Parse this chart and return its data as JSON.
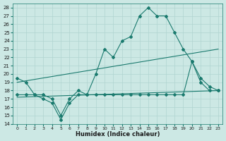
{
  "xlabel": "Humidex (Indice chaleur)",
  "xlim": [
    -0.5,
    23.5
  ],
  "ylim": [
    14,
    28.5
  ],
  "yticks": [
    14,
    15,
    16,
    17,
    18,
    19,
    20,
    21,
    22,
    23,
    24,
    25,
    26,
    27,
    28
  ],
  "xticks": [
    0,
    1,
    2,
    3,
    4,
    5,
    6,
    7,
    8,
    9,
    10,
    11,
    12,
    13,
    14,
    15,
    16,
    17,
    18,
    19,
    20,
    21,
    22,
    23
  ],
  "bg_color": "#cce8e4",
  "line_color": "#1a7a6e",
  "grid_color": "#b0d4d0",
  "line1_x": [
    0,
    1,
    2,
    3,
    4,
    5,
    6,
    7,
    8,
    9,
    10,
    11,
    12,
    13,
    14,
    15,
    16,
    17,
    18,
    19,
    20,
    21,
    22,
    23
  ],
  "line1_y": [
    19.5,
    19.0,
    17.5,
    17.5,
    17.0,
    15.0,
    17.0,
    18.0,
    17.5,
    20.0,
    23.0,
    22.0,
    24.0,
    24.5,
    27.0,
    28.0,
    27.0,
    27.0,
    25.0,
    23.0,
    21.5,
    19.5,
    18.5,
    18.0
  ],
  "line2_x": [
    0,
    1,
    2,
    3,
    4,
    5,
    6,
    7,
    8,
    9,
    10,
    11,
    12,
    13,
    14,
    15,
    16,
    17,
    18,
    19,
    20,
    21,
    22,
    23
  ],
  "line2_y": [
    17.5,
    17.5,
    17.5,
    17.0,
    16.5,
    14.5,
    16.5,
    17.5,
    17.5,
    17.5,
    17.5,
    17.5,
    17.5,
    17.5,
    17.5,
    17.5,
    17.5,
    17.5,
    17.5,
    17.5,
    21.5,
    19.0,
    18.0,
    18.0
  ],
  "line3_x": [
    0,
    23
  ],
  "line3_y": [
    19.0,
    23.0
  ],
  "line4_x": [
    0,
    23
  ],
  "line4_y": [
    17.2,
    18.0
  ]
}
